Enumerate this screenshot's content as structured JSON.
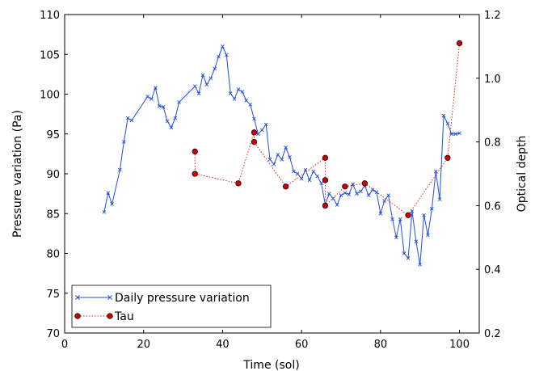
{
  "chart_data": {
    "type": "line",
    "title": "",
    "xlabel": "Time (sol)",
    "ylabel": "Pressure variation (Pa)",
    "y2label": "Optical depth",
    "xlim": [
      0,
      105
    ],
    "ylim": [
      70,
      110
    ],
    "y2lim": [
      0.2,
      1.2
    ],
    "xticks": [
      "0",
      "20",
      "40",
      "60",
      "80",
      "100"
    ],
    "yticks": [
      "70",
      "75",
      "80",
      "85",
      "90",
      "95",
      "100",
      "105",
      "110"
    ],
    "y2ticks": [
      "0.2",
      "0.4",
      "0.6",
      "0.8",
      "1.0",
      "1.2"
    ],
    "grid": false,
    "legend_position": "bottom-left",
    "series": [
      {
        "name": "Daily pressure variation",
        "axis": "left",
        "color": "#1f4fe0",
        "marker": "x",
        "line_style": "solid",
        "x": [
          10,
          11,
          12,
          14,
          15,
          16,
          17,
          21,
          22,
          23,
          24,
          25,
          26,
          27,
          28,
          29,
          33,
          34,
          35,
          36,
          37,
          38,
          39,
          40,
          41,
          42,
          43,
          44,
          45,
          46,
          47,
          48,
          49,
          50,
          51,
          52,
          53,
          54,
          55,
          56,
          57,
          58,
          59,
          60,
          61,
          62,
          63,
          64,
          65,
          66,
          67,
          68,
          69,
          70,
          71,
          72,
          73,
          74,
          75,
          76,
          77,
          78,
          79,
          80,
          81,
          82,
          83,
          84,
          85,
          86,
          87,
          88,
          89,
          90,
          91,
          92,
          93,
          94,
          95,
          96,
          97,
          98,
          99,
          100
        ],
        "y": [
          85.2,
          87.6,
          86.2,
          90.5,
          94.0,
          97.0,
          96.7,
          99.7,
          99.4,
          100.8,
          98.5,
          98.4,
          96.6,
          95.8,
          97.0,
          99.0,
          101.0,
          100.1,
          102.4,
          101.2,
          102.0,
          103.2,
          104.7,
          106.0,
          104.9,
          100.1,
          99.4,
          100.6,
          100.3,
          99.2,
          98.7,
          96.9,
          95.0,
          95.5,
          96.2,
          91.8,
          91.2,
          92.4,
          91.8,
          93.3,
          92.1,
          90.3,
          90.0,
          89.4,
          90.5,
          89.2,
          90.3,
          89.7,
          88.8,
          86.1,
          87.5,
          86.9,
          86.1,
          87.3,
          87.6,
          87.4,
          88.7,
          87.5,
          87.8,
          88.5,
          87.3,
          88.0,
          87.7,
          85.0,
          86.6,
          87.3,
          84.3,
          82.0,
          84.3,
          80.0,
          79.4,
          85.3,
          81.5,
          78.6,
          84.8,
          82.3,
          85.6,
          90.3,
          86.8,
          97.3,
          96.3,
          95.0,
          95.0,
          95.1
        ]
      },
      {
        "name": "Tau",
        "axis": "right",
        "color": "#e02020",
        "marker_fill": "#cc0000",
        "marker": "o",
        "line_style": "dotted",
        "x": [
          33,
          33,
          44,
          48,
          48,
          56,
          66,
          66,
          66,
          71,
          76,
          87,
          97,
          100
        ],
        "y": [
          0.77,
          0.7,
          0.67,
          0.83,
          0.8,
          0.66,
          0.75,
          0.68,
          0.6,
          0.66,
          0.67,
          0.57,
          0.75,
          1.11
        ]
      }
    ]
  }
}
